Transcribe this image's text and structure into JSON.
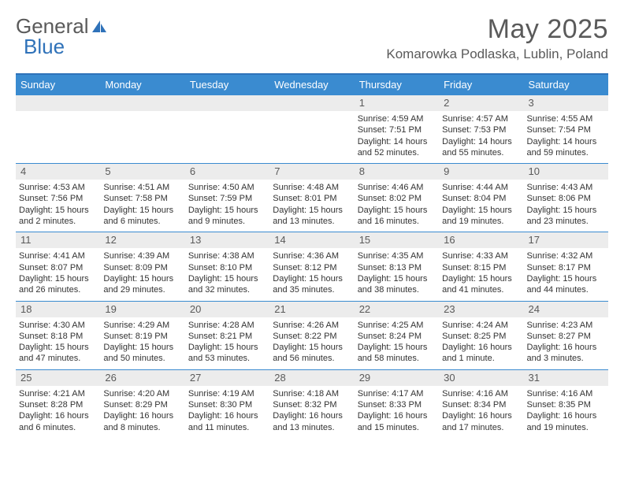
{
  "logo": {
    "part1": "General",
    "part2": "Blue"
  },
  "title": "May 2025",
  "location": "Komarowka Podlaska, Lublin, Poland",
  "colors": {
    "header_bar": "#3a8bd0",
    "accent": "#2f72b9",
    "daynum_bg": "#ececec",
    "text": "#333333",
    "muted": "#5a5a5a",
    "bg": "#ffffff"
  },
  "dow": [
    "Sunday",
    "Monday",
    "Tuesday",
    "Wednesday",
    "Thursday",
    "Friday",
    "Saturday"
  ],
  "weeks": [
    [
      {
        "n": "",
        "sr": "",
        "ss": "",
        "dl": ""
      },
      {
        "n": "",
        "sr": "",
        "ss": "",
        "dl": ""
      },
      {
        "n": "",
        "sr": "",
        "ss": "",
        "dl": ""
      },
      {
        "n": "",
        "sr": "",
        "ss": "",
        "dl": ""
      },
      {
        "n": "1",
        "sr": "Sunrise: 4:59 AM",
        "ss": "Sunset: 7:51 PM",
        "dl": "Daylight: 14 hours and 52 minutes."
      },
      {
        "n": "2",
        "sr": "Sunrise: 4:57 AM",
        "ss": "Sunset: 7:53 PM",
        "dl": "Daylight: 14 hours and 55 minutes."
      },
      {
        "n": "3",
        "sr": "Sunrise: 4:55 AM",
        "ss": "Sunset: 7:54 PM",
        "dl": "Daylight: 14 hours and 59 minutes."
      }
    ],
    [
      {
        "n": "4",
        "sr": "Sunrise: 4:53 AM",
        "ss": "Sunset: 7:56 PM",
        "dl": "Daylight: 15 hours and 2 minutes."
      },
      {
        "n": "5",
        "sr": "Sunrise: 4:51 AM",
        "ss": "Sunset: 7:58 PM",
        "dl": "Daylight: 15 hours and 6 minutes."
      },
      {
        "n": "6",
        "sr": "Sunrise: 4:50 AM",
        "ss": "Sunset: 7:59 PM",
        "dl": "Daylight: 15 hours and 9 minutes."
      },
      {
        "n": "7",
        "sr": "Sunrise: 4:48 AM",
        "ss": "Sunset: 8:01 PM",
        "dl": "Daylight: 15 hours and 13 minutes."
      },
      {
        "n": "8",
        "sr": "Sunrise: 4:46 AM",
        "ss": "Sunset: 8:02 PM",
        "dl": "Daylight: 15 hours and 16 minutes."
      },
      {
        "n": "9",
        "sr": "Sunrise: 4:44 AM",
        "ss": "Sunset: 8:04 PM",
        "dl": "Daylight: 15 hours and 19 minutes."
      },
      {
        "n": "10",
        "sr": "Sunrise: 4:43 AM",
        "ss": "Sunset: 8:06 PM",
        "dl": "Daylight: 15 hours and 23 minutes."
      }
    ],
    [
      {
        "n": "11",
        "sr": "Sunrise: 4:41 AM",
        "ss": "Sunset: 8:07 PM",
        "dl": "Daylight: 15 hours and 26 minutes."
      },
      {
        "n": "12",
        "sr": "Sunrise: 4:39 AM",
        "ss": "Sunset: 8:09 PM",
        "dl": "Daylight: 15 hours and 29 minutes."
      },
      {
        "n": "13",
        "sr": "Sunrise: 4:38 AM",
        "ss": "Sunset: 8:10 PM",
        "dl": "Daylight: 15 hours and 32 minutes."
      },
      {
        "n": "14",
        "sr": "Sunrise: 4:36 AM",
        "ss": "Sunset: 8:12 PM",
        "dl": "Daylight: 15 hours and 35 minutes."
      },
      {
        "n": "15",
        "sr": "Sunrise: 4:35 AM",
        "ss": "Sunset: 8:13 PM",
        "dl": "Daylight: 15 hours and 38 minutes."
      },
      {
        "n": "16",
        "sr": "Sunrise: 4:33 AM",
        "ss": "Sunset: 8:15 PM",
        "dl": "Daylight: 15 hours and 41 minutes."
      },
      {
        "n": "17",
        "sr": "Sunrise: 4:32 AM",
        "ss": "Sunset: 8:17 PM",
        "dl": "Daylight: 15 hours and 44 minutes."
      }
    ],
    [
      {
        "n": "18",
        "sr": "Sunrise: 4:30 AM",
        "ss": "Sunset: 8:18 PM",
        "dl": "Daylight: 15 hours and 47 minutes."
      },
      {
        "n": "19",
        "sr": "Sunrise: 4:29 AM",
        "ss": "Sunset: 8:19 PM",
        "dl": "Daylight: 15 hours and 50 minutes."
      },
      {
        "n": "20",
        "sr": "Sunrise: 4:28 AM",
        "ss": "Sunset: 8:21 PM",
        "dl": "Daylight: 15 hours and 53 minutes."
      },
      {
        "n": "21",
        "sr": "Sunrise: 4:26 AM",
        "ss": "Sunset: 8:22 PM",
        "dl": "Daylight: 15 hours and 56 minutes."
      },
      {
        "n": "22",
        "sr": "Sunrise: 4:25 AM",
        "ss": "Sunset: 8:24 PM",
        "dl": "Daylight: 15 hours and 58 minutes."
      },
      {
        "n": "23",
        "sr": "Sunrise: 4:24 AM",
        "ss": "Sunset: 8:25 PM",
        "dl": "Daylight: 16 hours and 1 minute."
      },
      {
        "n": "24",
        "sr": "Sunrise: 4:23 AM",
        "ss": "Sunset: 8:27 PM",
        "dl": "Daylight: 16 hours and 3 minutes."
      }
    ],
    [
      {
        "n": "25",
        "sr": "Sunrise: 4:21 AM",
        "ss": "Sunset: 8:28 PM",
        "dl": "Daylight: 16 hours and 6 minutes."
      },
      {
        "n": "26",
        "sr": "Sunrise: 4:20 AM",
        "ss": "Sunset: 8:29 PM",
        "dl": "Daylight: 16 hours and 8 minutes."
      },
      {
        "n": "27",
        "sr": "Sunrise: 4:19 AM",
        "ss": "Sunset: 8:30 PM",
        "dl": "Daylight: 16 hours and 11 minutes."
      },
      {
        "n": "28",
        "sr": "Sunrise: 4:18 AM",
        "ss": "Sunset: 8:32 PM",
        "dl": "Daylight: 16 hours and 13 minutes."
      },
      {
        "n": "29",
        "sr": "Sunrise: 4:17 AM",
        "ss": "Sunset: 8:33 PM",
        "dl": "Daylight: 16 hours and 15 minutes."
      },
      {
        "n": "30",
        "sr": "Sunrise: 4:16 AM",
        "ss": "Sunset: 8:34 PM",
        "dl": "Daylight: 16 hours and 17 minutes."
      },
      {
        "n": "31",
        "sr": "Sunrise: 4:16 AM",
        "ss": "Sunset: 8:35 PM",
        "dl": "Daylight: 16 hours and 19 minutes."
      }
    ]
  ]
}
